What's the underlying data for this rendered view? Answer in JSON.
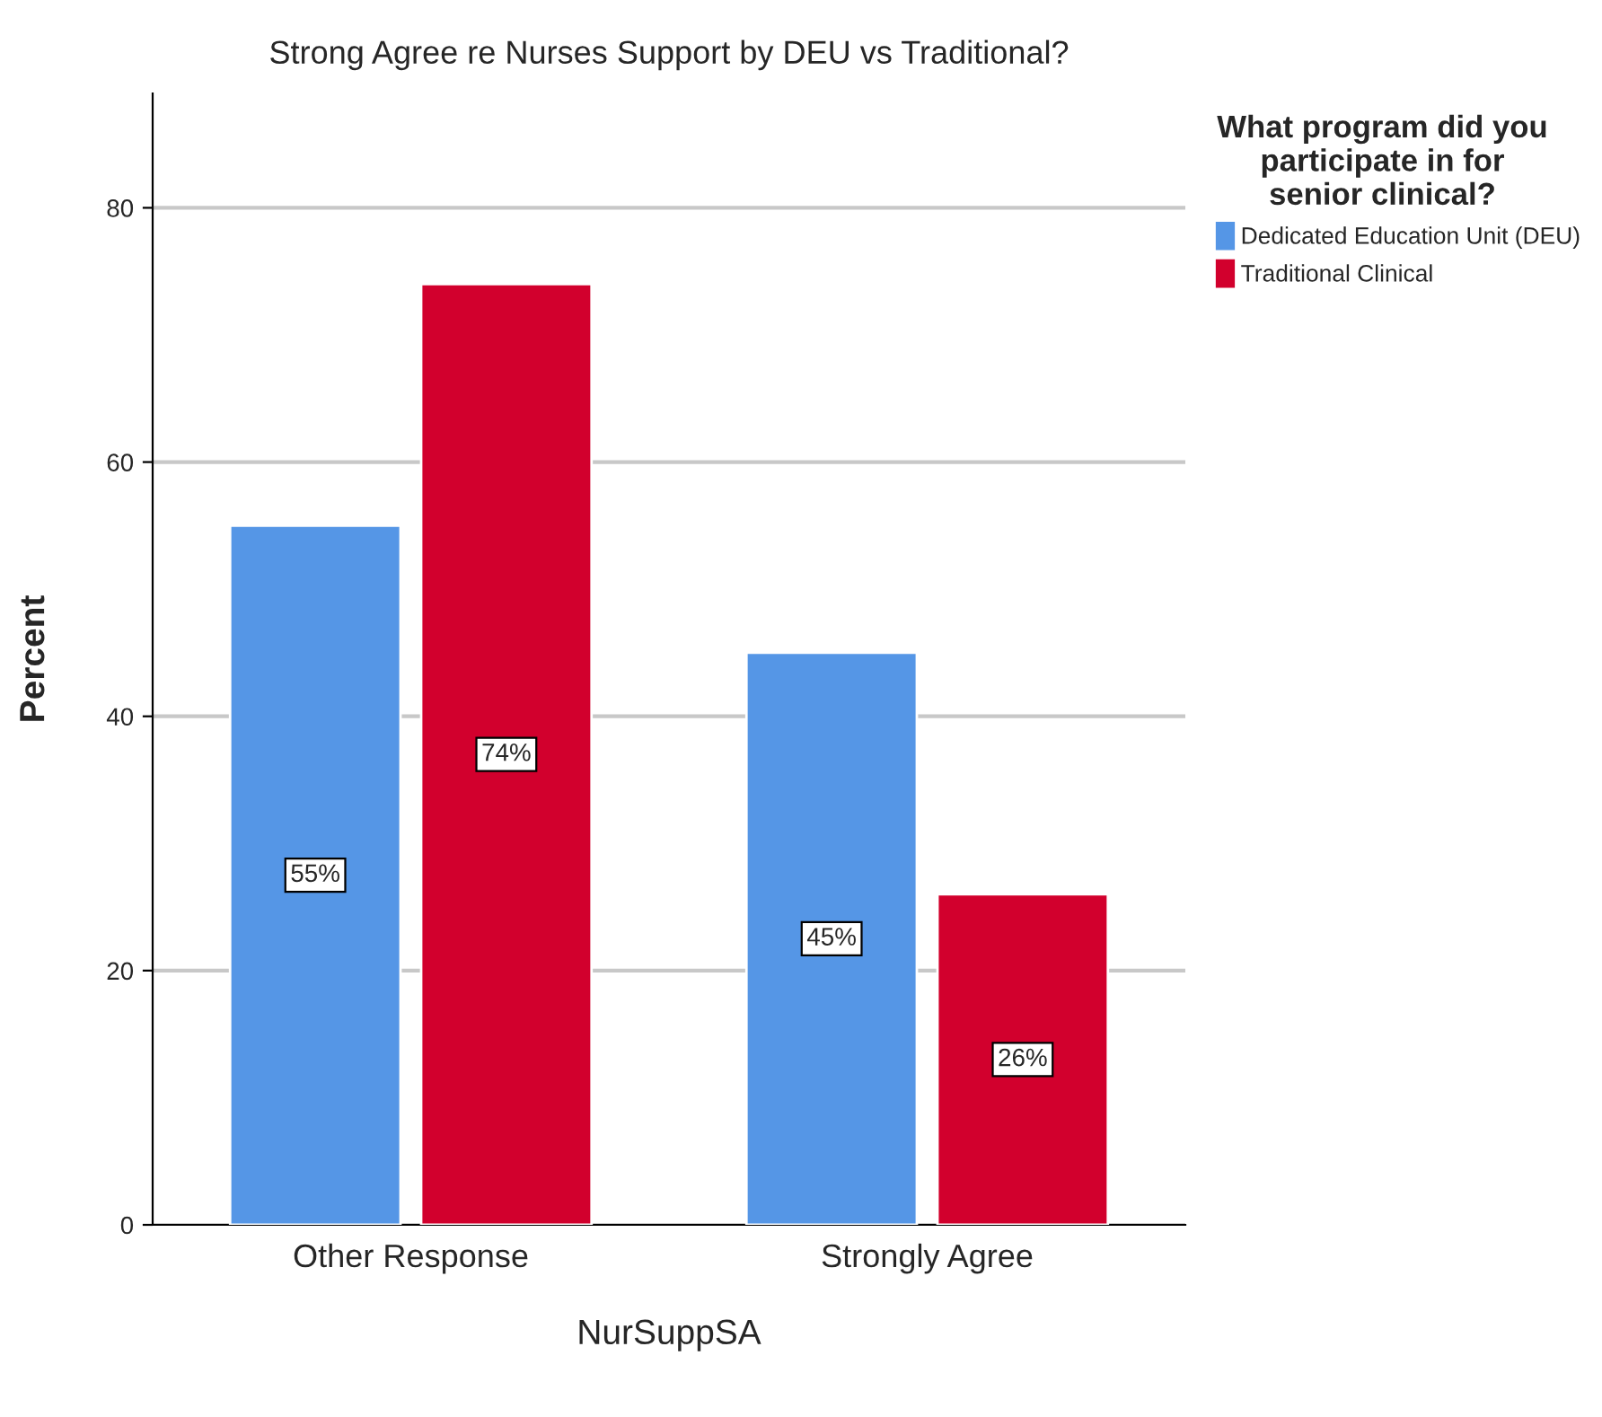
{
  "chart_data": {
    "type": "bar",
    "title": "Strong Agree re Nurses Support by DEU vs Traditional?",
    "xlabel": "NurSuppSA",
    "ylabel": "Percent",
    "legend_title": "What program did you participate in for senior clinical?",
    "categories": [
      "Other Response",
      "Strongly Agree"
    ],
    "series": [
      {
        "name": "Dedicated Education Unit (DEU)",
        "color": "#5596e6",
        "values": [
          55,
          45
        ],
        "value_labels": [
          "55%",
          "45%"
        ]
      },
      {
        "name": "Traditional Clinical",
        "color": "#d2002d",
        "values": [
          74,
          26
        ],
        "value_labels": [
          "74%",
          "26%"
        ]
      }
    ],
    "ylim": [
      0,
      89
    ],
    "yticks": [
      0,
      20,
      40,
      60,
      80
    ],
    "grid": "y",
    "legend": "right"
  }
}
